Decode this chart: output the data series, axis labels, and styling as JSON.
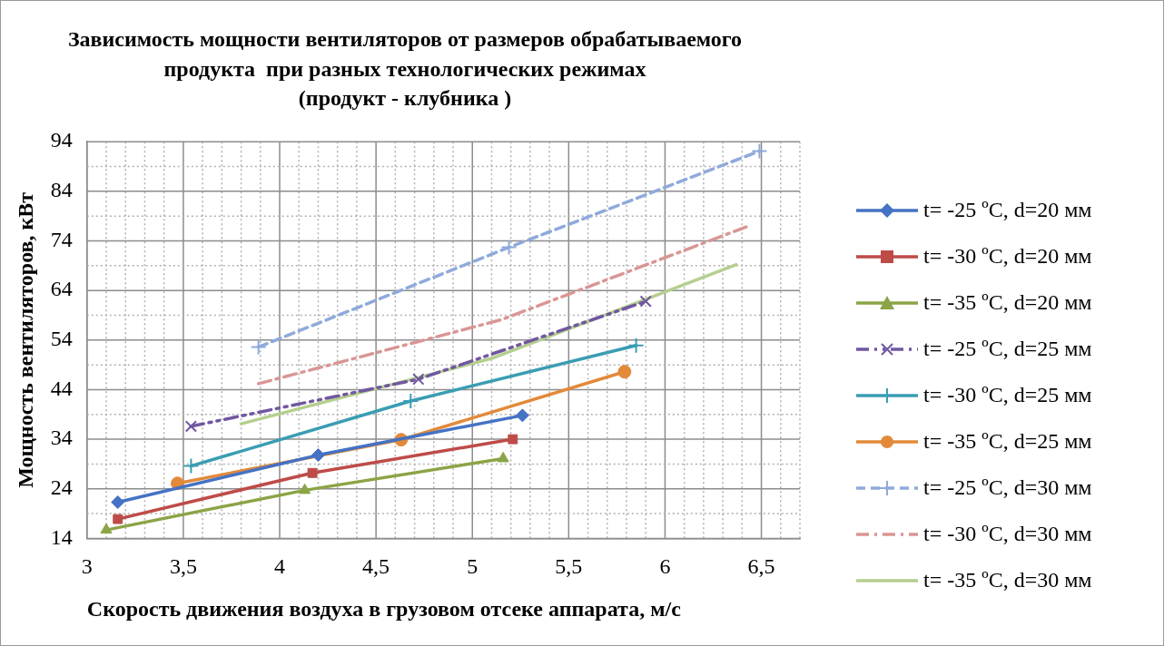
{
  "chart_data": {
    "type": "line",
    "title": "Зависимость мощности вентиляторов от размеров обрабатываемого\nпродукта  при разных технологических режимах\n(продукт - клубника )",
    "xlabel": "Скорость движения воздуха в грузовом отсеке аппарата, м/с",
    "ylabel": "Мощность вентиляторов, кВт",
    "xlim": [
      3,
      6.7
    ],
    "xticks": [
      3,
      {
        "value": 3.1,
        "label": null
      },
      {
        "value": 3.2,
        "label": null
      },
      {
        "value": 3.3,
        "label": null
      },
      {
        "value": 3.4,
        "label": null
      },
      {
        "value": 3.5,
        "label": "3,5"
      },
      {
        "value": 3.6,
        "label": null
      },
      {
        "value": 3.7,
        "label": null
      },
      {
        "value": 3.8,
        "label": null
      },
      {
        "value": 3.9,
        "label": null
      },
      4,
      {
        "value": 4.1,
        "label": null
      },
      {
        "value": 4.2,
        "label": null
      },
      {
        "value": 4.3,
        "label": null
      },
      {
        "value": 4.4,
        "label": null
      },
      {
        "value": 4.5,
        "label": "4,5"
      },
      {
        "value": 4.6,
        "label": null
      },
      {
        "value": 4.7,
        "label": null
      },
      {
        "value": 4.8,
        "label": null
      },
      {
        "value": 4.9,
        "label": null
      },
      5,
      {
        "value": 5.1,
        "label": null
      },
      {
        "value": 5.2,
        "label": null
      },
      {
        "value": 5.3,
        "label": null
      },
      {
        "value": 5.4,
        "label": null
      },
      {
        "value": 5.5,
        "label": "5,5"
      },
      {
        "value": 5.6,
        "label": null
      },
      {
        "value": 5.7,
        "label": null
      },
      {
        "value": 5.8,
        "label": null
      },
      {
        "value": 5.9,
        "label": null
      },
      6,
      {
        "value": 6.1,
        "label": null
      },
      {
        "value": 6.2,
        "label": null
      },
      {
        "value": 6.3,
        "label": null
      },
      {
        "value": 6.4,
        "label": null
      },
      {
        "value": 6.5,
        "label": "6,5"
      },
      {
        "value": 6.6,
        "label": null
      },
      {
        "value": 6.7,
        "label": null
      }
    ],
    "ylim": [
      14,
      94
    ],
    "yticks": [
      14,
      {
        "value": 19,
        "label": null
      },
      24,
      {
        "value": 29,
        "label": null
      },
      34,
      {
        "value": 39,
        "label": null
      },
      44,
      {
        "value": 49,
        "label": null
      },
      54,
      {
        "value": 59,
        "label": null
      },
      64,
      {
        "value": 69,
        "label": null
      },
      74,
      {
        "value": 79,
        "label": null
      },
      84,
      {
        "value": 89,
        "label": null
      },
      94
    ],
    "grid": true,
    "legend": "right",
    "series": [
      {
        "name": "t= -25 ºC, d=20 мм",
        "color": "#4472c4",
        "marker": "diamond",
        "line_style": "solid",
        "x": [
          3.16,
          4.2,
          5.26
        ],
        "values": [
          21.3,
          30.8,
          38.8
        ]
      },
      {
        "name": "t= -30 ºC, d=20 мм",
        "color": "#be4b48",
        "marker": "square",
        "line_style": "solid",
        "x": [
          3.16,
          4.17,
          5.21
        ],
        "values": [
          17.9,
          27.2,
          34
        ]
      },
      {
        "name": "t= -35 ºC, d=20 мм",
        "color": "#8ba446",
        "marker": "triangle",
        "line_style": "solid",
        "x": [
          3.1,
          4.13,
          5.16
        ],
        "values": [
          15.7,
          23.7,
          30.1
        ]
      },
      {
        "name": "t= -25 ºC, d=25 мм",
        "color": "#7157a0",
        "marker": "x",
        "line_style": "dashdotdot",
        "x": [
          3.54,
          4.72,
          5.9
        ],
        "values": [
          36.6,
          46.1,
          61.8
        ]
      },
      {
        "name": "t= -30 ºC, d=25 мм",
        "color": "#3a9db3",
        "marker": "cross",
        "line_style": "solid",
        "x": [
          3.54,
          4.68,
          5.85
        ],
        "values": [
          28.6,
          41.7,
          52.9
        ]
      },
      {
        "name": "t= -35 ºC, d=25 мм",
        "color": "#e28a3a",
        "marker": "circle",
        "line_style": "solid",
        "x": [
          3.47,
          4.63,
          5.79
        ],
        "values": [
          25.1,
          33.9,
          47.6
        ]
      },
      {
        "name": "t= -25 ºC, d=30 мм",
        "color": "#8faadc",
        "marker": "cross",
        "line_style": "dashed",
        "x": [
          3.89,
          5.19,
          6.49
        ],
        "values": [
          52.6,
          72.7,
          92.1
        ]
      },
      {
        "name": "t= -30 ºC, d=30 мм",
        "color": "#d99694",
        "marker": "none",
        "line_style": "dashdot",
        "x": [
          3.89,
          5.15,
          6.44
        ],
        "values": [
          45.2,
          58.1,
          77.1
        ]
      },
      {
        "name": "t= -35 ºC, d=30 мм",
        "color": "#b5cf8e",
        "marker": "none",
        "line_style": "solid",
        "x": [
          3.8,
          5.1,
          6.37
        ],
        "values": [
          37.1,
          50.3,
          69.2
        ]
      }
    ]
  }
}
